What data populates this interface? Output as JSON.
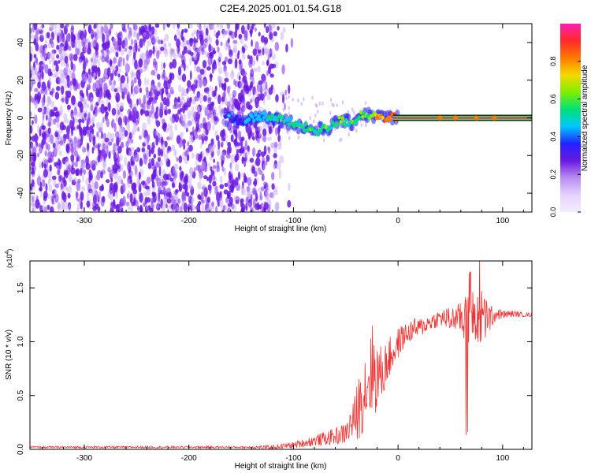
{
  "chart_data": [
    {
      "type": "heatmap",
      "title": "C2E4.2025.001.01.54.G18",
      "xlabel": "Height of straight line (km)",
      "ylabel": "Frequency (Hz)",
      "xlim": [
        -352,
        128
      ],
      "ylim": [
        -50,
        50
      ],
      "x_ticks": [
        -300,
        -200,
        -100,
        0,
        100
      ],
      "y_ticks": [
        -40,
        -20,
        0,
        20,
        40
      ],
      "colorbar": {
        "label": "Normalized spectral amplitude",
        "range": [
          0.0,
          1.0
        ],
        "ticks": [
          "0.0",
          "0.2",
          "0.4",
          "0.6",
          "0.8"
        ],
        "tick_values": [
          0.0,
          0.2,
          0.4,
          0.6,
          0.8
        ],
        "colors": [
          "#f4ecff",
          "#e6d2ff",
          "#b98cf2",
          "#6a19e0",
          "#2222ff",
          "#00c8ff",
          "#00e07a",
          "#7ef000",
          "#f5d800",
          "#ff7a00",
          "#ff2a2a",
          "#ff1fb4"
        ]
      },
      "signal_track": [
        {
          "x": -165,
          "f": 0.0,
          "amp": 0.35
        },
        {
          "x": -150,
          "f": -2.0,
          "amp": 0.35
        },
        {
          "x": -135,
          "f": 1.0,
          "amp": 0.45
        },
        {
          "x": -120,
          "f": 0.5,
          "amp": 0.5
        },
        {
          "x": -105,
          "f": -2.0,
          "amp": 0.5
        },
        {
          "x": -90,
          "f": -5.0,
          "amp": 0.55
        },
        {
          "x": -78,
          "f": -7.0,
          "amp": 0.55
        },
        {
          "x": -65,
          "f": -5.0,
          "amp": 0.55
        },
        {
          "x": -55,
          "f": -1.0,
          "amp": 0.6
        },
        {
          "x": -45,
          "f": -3.0,
          "amp": 0.55
        },
        {
          "x": -35,
          "f": 2.0,
          "amp": 0.6
        },
        {
          "x": -22,
          "f": 1.0,
          "amp": 0.7
        },
        {
          "x": -10,
          "f": 0.0,
          "amp": 0.85
        },
        {
          "x": 0,
          "f": 0.0,
          "amp": 0.9
        },
        {
          "x": 128,
          "f": 0.0,
          "amp": 0.95
        }
      ],
      "noise_region": [
        -352,
        -110
      ]
    },
    {
      "type": "line",
      "xlabel": "Height of straight line (km)",
      "ylabel": "SNR (10 * v/v)",
      "y_multiplier": "(x10",
      "y_multiplier_exp": "4",
      "xlim": [
        -352,
        128
      ],
      "ylim": [
        0.0,
        1.75
      ],
      "x_ticks": [
        -300,
        -200,
        -100,
        0,
        100
      ],
      "y_ticks": [
        "0.0",
        "0.5",
        "1.0",
        "1.5"
      ],
      "y_tick_values": [
        0.0,
        0.5,
        1.0,
        1.5
      ],
      "series": [
        {
          "name": "SNR",
          "color": "#ee3333",
          "x": [
            -352,
            -300,
            -250,
            -200,
            -150,
            -120,
            -100,
            -80,
            -60,
            -50,
            -42,
            -38,
            -34,
            -30,
            -25,
            -20,
            -15,
            -10,
            -5,
            0,
            5,
            10,
            15,
            20,
            25,
            30,
            35,
            40,
            45,
            50,
            55,
            60,
            65,
            70,
            75,
            80,
            85,
            90,
            95,
            100,
            110,
            120,
            128
          ],
          "values": [
            0.02,
            0.02,
            0.02,
            0.02,
            0.02,
            0.02,
            0.04,
            0.08,
            0.12,
            0.15,
            0.28,
            0.38,
            0.5,
            0.62,
            0.75,
            0.68,
            0.7,
            0.82,
            0.9,
            0.98,
            1.05,
            1.08,
            1.12,
            1.12,
            1.15,
            1.18,
            1.2,
            1.22,
            1.22,
            1.2,
            1.22,
            1.22,
            1.18,
            1.2,
            1.25,
            1.22,
            1.2,
            1.24,
            1.26,
            1.25,
            1.26,
            1.25,
            1.25
          ],
          "spread": [
            0.01,
            0.01,
            0.01,
            0.01,
            0.01,
            0.02,
            0.03,
            0.05,
            0.08,
            0.1,
            0.2,
            0.3,
            0.35,
            0.4,
            0.45,
            0.35,
            0.25,
            0.2,
            0.18,
            0.15,
            0.12,
            0.1,
            0.1,
            0.1,
            0.08,
            0.08,
            0.08,
            0.08,
            0.1,
            0.12,
            0.12,
            0.15,
            0.25,
            0.25,
            0.3,
            0.28,
            0.2,
            0.1,
            0.06,
            0.04,
            0.03,
            0.02,
            0.02
          ]
        }
      ]
    }
  ]
}
